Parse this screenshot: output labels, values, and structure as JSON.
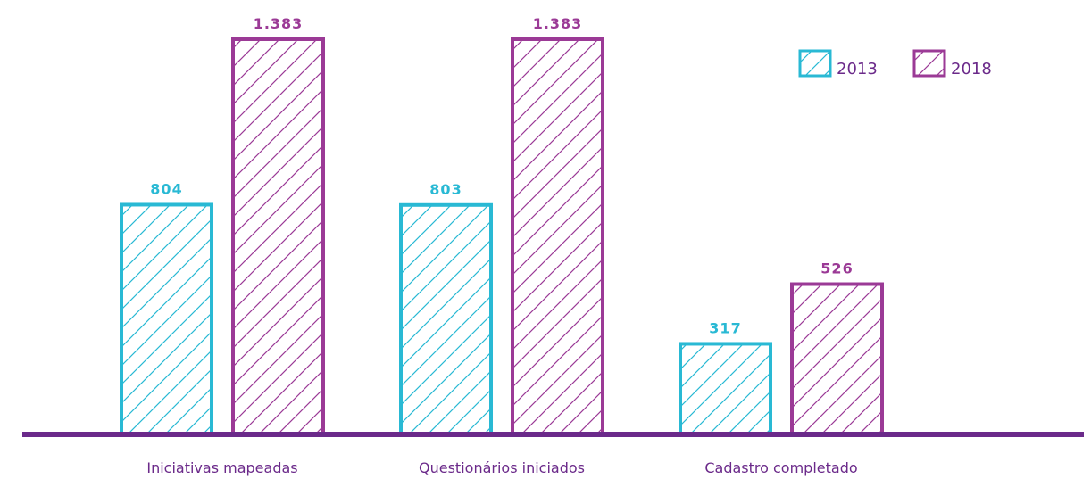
{
  "chart_data": {
    "type": "bar",
    "categories": [
      "Iniciativas mapeadas",
      "Questionários iniciados",
      "Cadastro completado"
    ],
    "series": [
      {
        "name": "2013",
        "values": [
          804,
          803,
          317
        ],
        "labels": [
          "804",
          "803",
          "317"
        ],
        "color": "#29b9d4"
      },
      {
        "name": "2018",
        "values": [
          1383,
          1383,
          526
        ],
        "labels": [
          "1.383",
          "1.383",
          "526"
        ],
        "color": "#9b3a96"
      }
    ],
    "ylim": [
      0,
      1383
    ],
    "grid": false,
    "legend": "top-right",
    "baseline_color": "#6b2a8a",
    "category_label_color": "#6b2a8a"
  }
}
